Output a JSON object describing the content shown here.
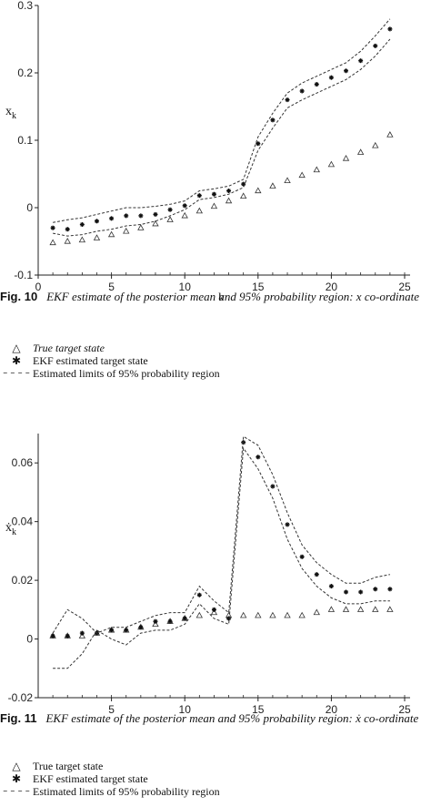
{
  "figures": [
    {
      "caption_label": "Fig. 10",
      "caption_text": "EKF estimate of the posterior mean and 95% probability region: x co-ordinate",
      "legend": [
        {
          "symbol": "triangle",
          "glyph": "△",
          "label": "True target state",
          "italic": true
        },
        {
          "symbol": "star",
          "glyph": "✱",
          "label": "EKF estimated target state",
          "italic": false
        },
        {
          "symbol": "dash",
          "glyph": "– – – –",
          "label": "Estimated limits of 95% probability region",
          "italic": false
        }
      ]
    },
    {
      "caption_label": "Fig. 11",
      "caption_text": "EKF estimate of the posterior mean and 95% probability region: ẋ co-ordinate",
      "legend": [
        {
          "symbol": "triangle",
          "glyph": "△",
          "label": "True target state",
          "italic": false
        },
        {
          "symbol": "star",
          "glyph": "✱",
          "label": "EKF estimated target state",
          "italic": false
        },
        {
          "symbol": "dash",
          "glyph": "– – – –",
          "label": "Estimated limits of 95% probability region",
          "italic": false
        }
      ]
    }
  ],
  "chart_data": [
    {
      "type": "scatter",
      "title": "",
      "xlabel": "k",
      "ylabel": "x_k",
      "xlim": [
        0,
        25
      ],
      "ylim": [
        -0.1,
        0.3
      ],
      "x_ticks": [
        "0",
        "5",
        "10",
        "15",
        "20",
        "25"
      ],
      "y_ticks": [
        "-0.1",
        "0",
        "0.1",
        "0.2",
        "0.3"
      ],
      "x": [
        1,
        2,
        3,
        4,
        5,
        6,
        7,
        8,
        9,
        10,
        11,
        12,
        13,
        14,
        15,
        16,
        17,
        18,
        19,
        20,
        21,
        22,
        23,
        24
      ],
      "series": [
        {
          "name": "True target state",
          "marker": "triangle",
          "values": [
            -0.052,
            -0.05,
            -0.048,
            -0.045,
            -0.04,
            -0.035,
            -0.03,
            -0.024,
            -0.018,
            -0.012,
            -0.005,
            0.002,
            0.01,
            0.017,
            0.025,
            0.032,
            0.04,
            0.048,
            0.056,
            0.064,
            0.073,
            0.082,
            0.092,
            0.108
          ]
        },
        {
          "name": "EKF estimated target state",
          "marker": "star",
          "values": [
            -0.03,
            -0.032,
            -0.025,
            -0.02,
            -0.016,
            -0.012,
            -0.012,
            -0.01,
            -0.003,
            0.003,
            0.018,
            0.02,
            0.025,
            0.035,
            0.095,
            0.13,
            0.16,
            0.173,
            0.183,
            0.193,
            0.203,
            0.218,
            0.24,
            0.265
          ]
        },
        {
          "name": "Upper limit of 95% probability region",
          "marker": "dashed",
          "values": [
            -0.022,
            -0.018,
            -0.015,
            -0.01,
            -0.005,
            0.0,
            0.0,
            0.002,
            0.005,
            0.01,
            0.025,
            0.028,
            0.032,
            0.042,
            0.105,
            0.14,
            0.17,
            0.185,
            0.195,
            0.205,
            0.215,
            0.232,
            0.255,
            0.28
          ]
        },
        {
          "name": "Lower limit of 95% probability region",
          "marker": "dashed",
          "values": [
            -0.038,
            -0.042,
            -0.04,
            -0.035,
            -0.032,
            -0.027,
            -0.025,
            -0.02,
            -0.012,
            -0.003,
            0.012,
            0.015,
            0.02,
            0.03,
            0.085,
            0.118,
            0.148,
            0.16,
            0.17,
            0.18,
            0.19,
            0.205,
            0.225,
            0.25
          ]
        }
      ]
    },
    {
      "type": "scatter",
      "title": "",
      "xlabel": "k",
      "ylabel": "ẋ_k",
      "xlim": [
        0,
        25
      ],
      "ylim": [
        -0.02,
        0.07
      ],
      "x_ticks": [
        "5",
        "10",
        "15",
        "20",
        "25"
      ],
      "y_ticks": [
        "-0.02",
        "0",
        "0.02",
        "0.04",
        "0.06"
      ],
      "x": [
        1,
        2,
        3,
        4,
        5,
        6,
        7,
        8,
        9,
        10,
        11,
        12,
        13,
        14,
        15,
        16,
        17,
        18,
        19,
        20,
        21,
        22,
        23,
        24
      ],
      "series": [
        {
          "name": "True target state",
          "marker": "triangle",
          "values": [
            0.001,
            0.001,
            0.001,
            0.002,
            0.003,
            0.003,
            0.004,
            0.005,
            0.006,
            0.007,
            0.008,
            0.009,
            0.008,
            0.008,
            0.008,
            0.008,
            0.008,
            0.008,
            0.009,
            0.01,
            0.01,
            0.01,
            0.01,
            0.01
          ]
        },
        {
          "name": "EKF estimated target state",
          "marker": "star",
          "values": [
            0.001,
            0.001,
            0.002,
            0.002,
            0.003,
            0.003,
            0.004,
            0.006,
            0.006,
            0.007,
            0.015,
            0.01,
            0.007,
            0.067,
            0.062,
            0.052,
            0.039,
            0.028,
            0.022,
            0.018,
            0.016,
            0.016,
            0.017,
            0.017
          ]
        },
        {
          "name": "Upper limit of 95% probability region",
          "marker": "dashed",
          "values": [
            0.002,
            0.01,
            0.007,
            0.002,
            0.004,
            0.004,
            0.006,
            0.008,
            0.009,
            0.009,
            0.018,
            0.013,
            0.009,
            0.069,
            0.066,
            0.056,
            0.043,
            0.032,
            0.026,
            0.022,
            0.019,
            0.019,
            0.021,
            0.022
          ]
        },
        {
          "name": "Lower limit of 95% probability region",
          "marker": "dashed",
          "values": [
            -0.01,
            -0.01,
            -0.005,
            0.003,
            0.0,
            -0.002,
            0.002,
            0.003,
            0.003,
            0.005,
            0.012,
            0.007,
            0.005,
            0.065,
            0.058,
            0.048,
            0.034,
            0.024,
            0.018,
            0.014,
            0.012,
            0.012,
            0.013,
            0.013
          ]
        }
      ]
    }
  ]
}
